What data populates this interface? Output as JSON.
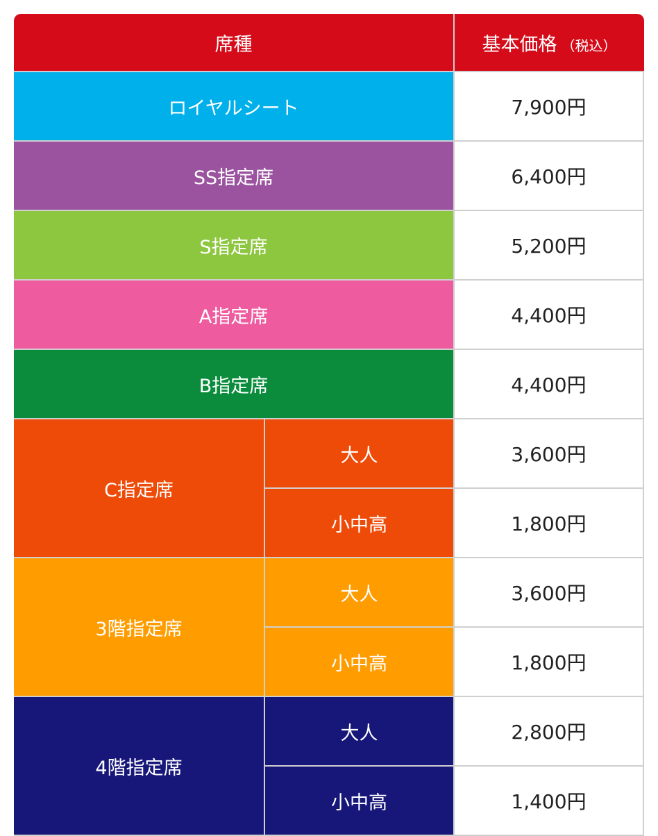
{
  "header": {
    "seat_label": "席種",
    "price_label": "基本価格",
    "price_note": "（税込）"
  },
  "rows": [
    {
      "seat": "ロイヤルシート",
      "color": "#00b0eb",
      "price": "7,900円"
    },
    {
      "seat": "SS指定席",
      "color": "#9b53a0",
      "price": "6,400円"
    },
    {
      "seat": "S指定席",
      "color": "#8dc63f",
      "price": "5,200円"
    },
    {
      "seat": "A指定席",
      "color": "#ee5b9f",
      "price": "4,400円"
    },
    {
      "seat": "B指定席",
      "color": "#0b8c3c",
      "price": "4,400円"
    }
  ],
  "groups": [
    {
      "seat": "C指定席",
      "color": "#ee4b08",
      "subs": [
        {
          "label": "大人",
          "price": "3,600円"
        },
        {
          "label": "小中高",
          "price": "1,800円"
        }
      ]
    },
    {
      "seat": "3階指定席",
      "color": "#ff9c00",
      "subs": [
        {
          "label": "大人",
          "price": "3,600円"
        },
        {
          "label": "小中高",
          "price": "1,800円"
        }
      ]
    },
    {
      "seat": "4階指定席",
      "color": "#17177a",
      "subs": [
        {
          "label": "大人",
          "price": "2,800円"
        },
        {
          "label": "小中高",
          "price": "1,400円"
        }
      ]
    }
  ],
  "colors": {
    "header_red": "#d50b1a",
    "border_gray": "#cfcfcf"
  }
}
